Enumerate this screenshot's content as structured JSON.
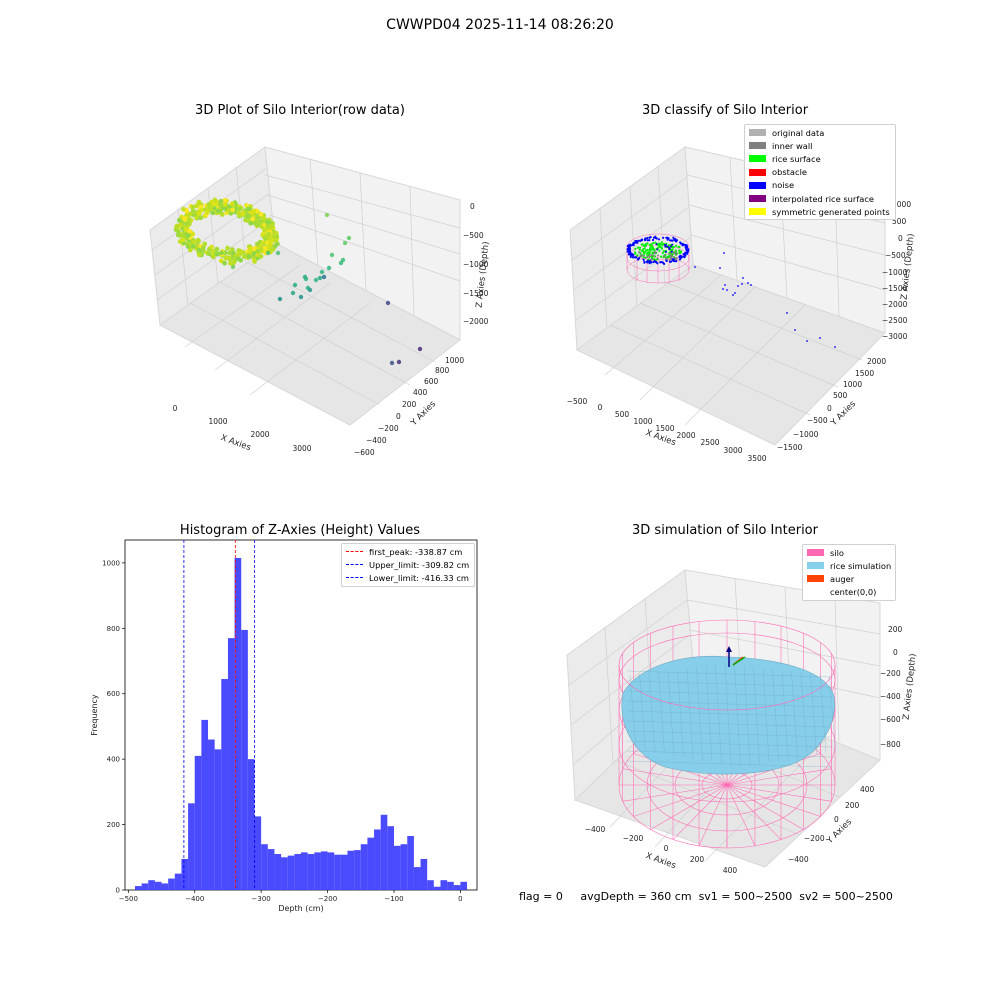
{
  "suptitle": "CWWPD04 2025-11-14 08:26:20",
  "colors": {
    "hist_bar": "#4040ff",
    "peak_line": "#ff0000",
    "limit_line": "#0000ff",
    "silo": "#ff69b4",
    "rice": "#87ceeb",
    "auger": "#ff4500"
  },
  "chart_data": [
    {
      "type": "scatter",
      "panel": "raw",
      "title": "3D Plot of Silo Interior(row data)",
      "xlabel": "X Axies",
      "ylabel": "Y Axies",
      "zlabel": "Z Axies (Depth)",
      "x_ticks": [
        "0",
        "1000",
        "2000",
        "3000"
      ],
      "y_ticks": [
        "1000",
        "800",
        "600",
        "400",
        "200",
        "0",
        "−200",
        "−400",
        "−600"
      ],
      "z_ticks": [
        "0",
        "−500",
        "−1000",
        "−1500",
        "−2000"
      ],
      "colormap": "viridis (by depth)"
    },
    {
      "type": "scatter",
      "panel": "classify",
      "title": "3D classify of Silo Interior",
      "xlabel": "X Axies",
      "ylabel": "Y Axies",
      "zlabel": "Z Axies (Depth)",
      "x_ticks": [
        "−500",
        "0",
        "500",
        "1000",
        "1500",
        "2000",
        "2500",
        "3000",
        "3500"
      ],
      "y_ticks": [
        "2000",
        "1500",
        "1000",
        "500",
        "0",
        "−500",
        "−1000",
        "−1500"
      ],
      "z_ticks": [
        "1000",
        "500",
        "0",
        "−500",
        "−1000",
        "−1500",
        "−2000",
        "−2500",
        "−3000"
      ],
      "legend": [
        {
          "label": "original data",
          "color": "#b0b0b0"
        },
        {
          "label": "inner wall",
          "color": "#808080"
        },
        {
          "label": "rice surface",
          "color": "#00ff00"
        },
        {
          "label": "obstacle",
          "color": "#ff0000"
        },
        {
          "label": "noise",
          "color": "#0000ff"
        },
        {
          "label": "interpolated rice surface",
          "color": "#800080"
        },
        {
          "label": "symmetric generated points",
          "color": "#ffff00"
        }
      ]
    },
    {
      "type": "bar",
      "panel": "histogram",
      "title": "Histogram of Z-Axies (Height) Values",
      "xlabel": "Depth (cm)",
      "ylabel": "Frequency",
      "xlim": [
        -505,
        25
      ],
      "ylim": [
        0,
        1070
      ],
      "x_ticks": [
        -500,
        -400,
        -300,
        -200,
        -100,
        0
      ],
      "y_ticks": [
        0,
        200,
        400,
        600,
        800,
        1000
      ],
      "bin_start": -490,
      "bin_width": 10,
      "values": [
        12,
        20,
        30,
        25,
        20,
        35,
        50,
        95,
        265,
        410,
        520,
        460,
        430,
        645,
        770,
        1015,
        795,
        400,
        225,
        140,
        125,
        110,
        100,
        105,
        110,
        115,
        110,
        115,
        118,
        115,
        108,
        108,
        120,
        122,
        140,
        160,
        185,
        230,
        195,
        135,
        140,
        165,
        70,
        95,
        30,
        10,
        30,
        25,
        15,
        25
      ],
      "lines": [
        {
          "label": "first_peak: -338.87 cm",
          "x": -338.87,
          "color": "#ff0000"
        },
        {
          "label": "Upper_limit: -309.82 cm",
          "x": -309.82,
          "color": "#0000ff"
        },
        {
          "label": "Lower_limit: -416.33 cm",
          "x": -416.33,
          "color": "#0000ff"
        }
      ],
      "grid": false,
      "legend_position": "top-right"
    },
    {
      "type": "surface",
      "panel": "simulation",
      "title": "3D simulation of Silo Interior",
      "xlabel": "X Axies",
      "ylabel": "Y Axies",
      "zlabel": "Z Axies (Depth)",
      "x_ticks": [
        "−400",
        "−200",
        "0",
        "200",
        "400"
      ],
      "y_ticks": [
        "400",
        "200",
        "0",
        "−200",
        "−400"
      ],
      "z_ticks": [
        "200",
        "0",
        "−200",
        "−400",
        "−600",
        "−800"
      ],
      "legend": [
        {
          "label": "silo",
          "color": "#ff69b4"
        },
        {
          "label": "rice simulation",
          "color": "#87ceeb"
        },
        {
          "label": "auger",
          "color": "#ff4500"
        },
        {
          "label": "center(0,0)",
          "color": ""
        }
      ]
    }
  ],
  "status": {
    "flag": "flag = 0",
    "avg_depth": "avgDepth = 360 cm",
    "sv1": "sv1 = 500~2500",
    "sv2": "sv2 = 500~2500"
  }
}
